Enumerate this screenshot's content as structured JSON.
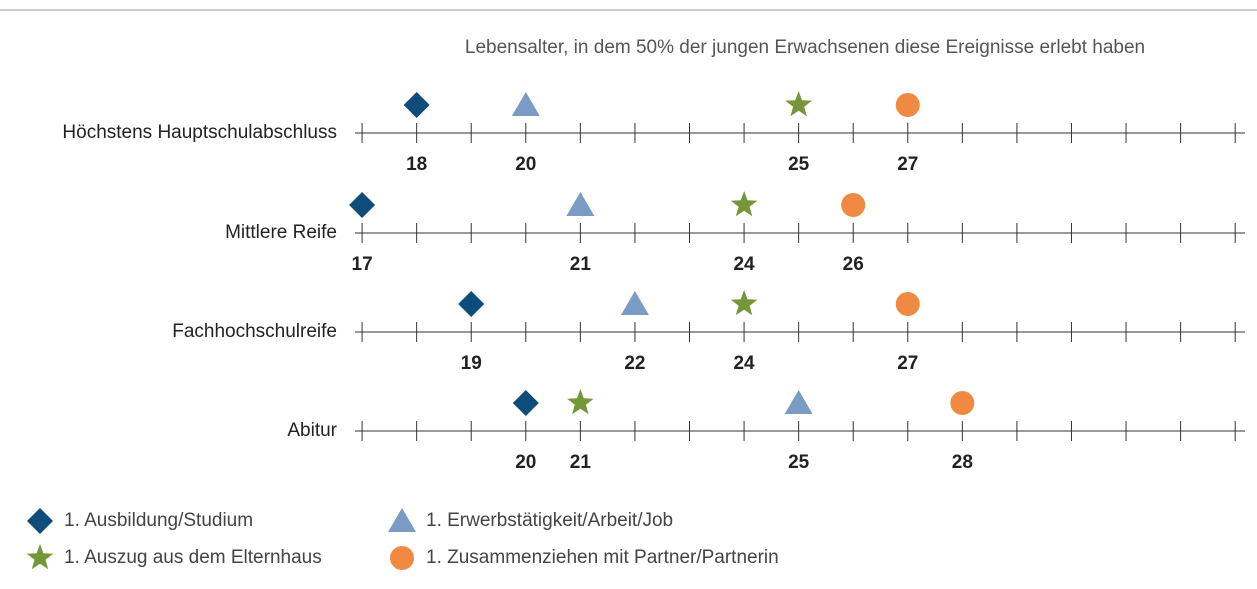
{
  "chart_data": {
    "type": "dot",
    "title": "Lebensalter, in dem 50% der jungen Erwachsenen diese Ereignisse erlebt haben",
    "categories": [
      "Höchstens Hauptschulabschluss",
      "Mittlere Reife",
      "Fachhochschulreife",
      "Abitur"
    ],
    "series": [
      {
        "name": "1. Ausbildung/Studium",
        "color": "#0f4c7a",
        "marker": "diamond",
        "values": [
          18,
          17,
          19,
          20
        ]
      },
      {
        "name": "1. Erwerbstätigkeit/Arbeit/Job",
        "color": "#7a9cc4",
        "marker": "triangle",
        "values": [
          20,
          21,
          22,
          25
        ]
      },
      {
        "name": "1. Auszug aus dem Elternhaus",
        "color": "#76963a",
        "marker": "star",
        "values": [
          25,
          24,
          24,
          21
        ]
      },
      {
        "name": "1. Zusammenziehen mit Partner/Partnerin",
        "color": "#f08a42",
        "marker": "circle",
        "values": [
          27,
          26,
          27,
          28
        ]
      }
    ],
    "xlim": [
      16.87,
      33.18
    ],
    "xticks": [
      17,
      18,
      19,
      20,
      21,
      22,
      23,
      24,
      25,
      26,
      27,
      28,
      29,
      30,
      31,
      32,
      33
    ]
  }
}
